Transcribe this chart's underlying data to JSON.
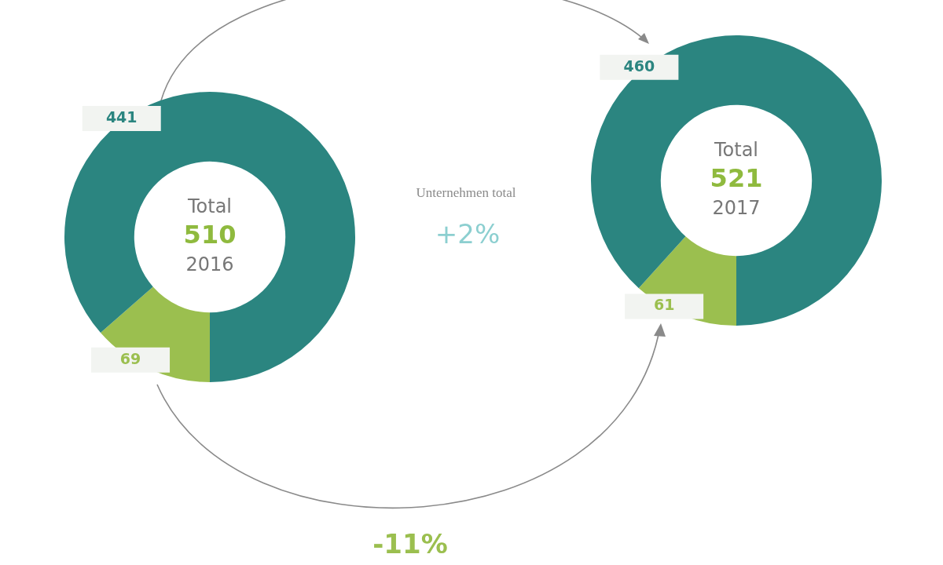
{
  "chart_data": [
    {
      "type": "donut",
      "categories": [
        null,
        null
      ],
      "values": [
        69,
        441
      ],
      "colors": [
        "#9bbf4f",
        "#2b8580"
      ],
      "data_labels": true,
      "annotations": [
        "Total",
        "510",
        "2016"
      ]
    },
    {
      "type": "donut",
      "categories": [
        null,
        null
      ],
      "values": [
        61,
        460
      ],
      "colors": [
        "#9bbf4f",
        "#2b8580"
      ],
      "data_labels": true,
      "annotations": [
        "Total",
        "521",
        "2017"
      ]
    },
    {
      "type": "other",
      "annotations": [
        "Unternehmen total",
        "+2%",
        "-11%"
      ]
    }
  ]
}
